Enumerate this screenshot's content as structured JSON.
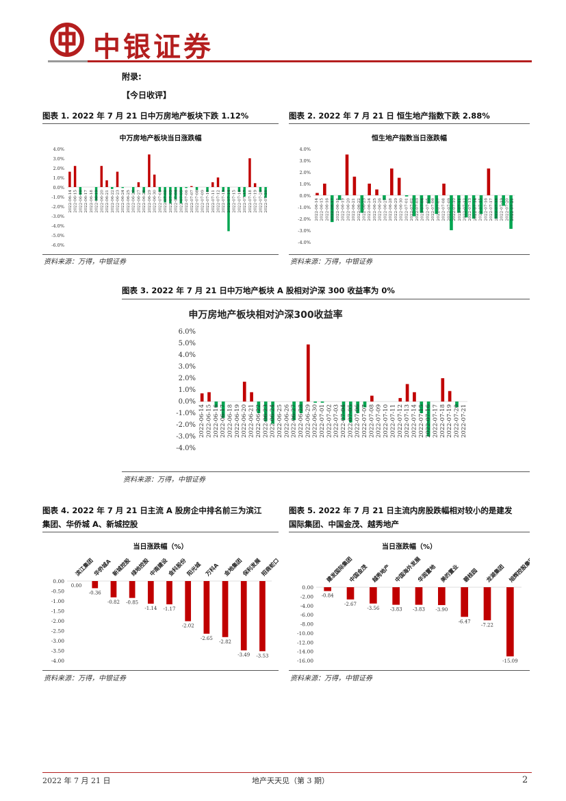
{
  "header": {
    "brand": "中银证券"
  },
  "appendix": {
    "label": "附录:",
    "comment_label": "【今日收评】"
  },
  "figures": {
    "f1": {
      "title": "图表 1. 2022 年 7 月 21 日中万房地产板块下跌 1.12%",
      "source": "资料来源：万得，中银证券"
    },
    "f2": {
      "title": "图表 2. 2022 年 7 月 21 日 恒生地产指数下跌 2.88%",
      "source": "资料来源：万得，中银证券"
    },
    "f3": {
      "title": "图表 3. 2022 年 7 月 21 日中万地产板块 A 股相对沪深 300 收益率为 0%",
      "source": "资料来源：万得，中银证券"
    },
    "f4": {
      "title_line1": "图表 4. 2022 年 7 月 21 日主流 A 股房企中排名前三为滨江",
      "title_line2": "集团、华侨城 A、新城控股",
      "source": "资料来源：万得，中银证券"
    },
    "f5": {
      "title_line1": "图表 5. 2022 年 7 月 21 日主流内房股跌幅相对较小的是建发",
      "title_line2": "国际集团、中国金茂、越秀地产",
      "source": "资料来源：万得，中银证券"
    }
  },
  "footer": {
    "date": "2022 年 7 月 21 日",
    "report": "地产天天见（第 3 期）",
    "page": "2"
  },
  "colors": {
    "brand_red": "#b41e1e",
    "up": "#c00000",
    "down": "#00a651"
  },
  "chart_data": [
    {
      "id": "c1",
      "type": "bar",
      "title": "中万房地产板块当日涨跌幅",
      "categories": [
        "2022-06-14",
        "2022-06-15",
        "2022-06-16",
        "2022-06-17",
        "2022-06-18",
        "2022-06-19",
        "2022-06-20",
        "2022-06-21",
        "2022-06-22",
        "2022-06-23",
        "2022-06-24",
        "2022-06-25",
        "2022-06-26",
        "2022-06-27",
        "2022-06-28",
        "2022-06-29",
        "2022-06-30",
        "2022-07-01",
        "2022-07-02",
        "2022-07-03",
        "2022-07-04",
        "2022-07-05",
        "2022-07-06",
        "2022-07-07",
        "2022-07-08",
        "2022-07-09",
        "2022-07-10",
        "2022-07-11",
        "2022-07-12",
        "2022-07-13",
        "2022-07-14",
        "2022-07-15",
        "2022-07-16",
        "2022-07-17",
        "2022-07-18",
        "2022-07-19",
        "2022-07-20",
        "2022-07-21"
      ],
      "values": [
        1.6,
        2.2,
        -0.8,
        0,
        0,
        -1.4,
        2.2,
        0.7,
        -0.2,
        1.6,
        -0.1,
        0,
        -0.6,
        0.5,
        -0.6,
        3.4,
        1.3,
        -0.5,
        -1.6,
        -1.7,
        -1.3,
        -1.7,
        -0.1,
        0.1,
        -0.3,
        0,
        -0.5,
        0.5,
        1.0,
        -0.5,
        -4.6,
        0.0,
        -0.5,
        -1.0,
        3.0,
        0.4,
        -0.5,
        -1.12
      ],
      "ylim": [
        -6,
        4
      ],
      "yticks": [
        "4.0%",
        "3.0%",
        "2.0%",
        "1.0%",
        "0.0%",
        "-1.0%",
        "-2.0%",
        "-3.0%",
        "-4.0%",
        "-5.0%",
        "-6.0%"
      ],
      "tickvals": [
        4,
        3,
        2,
        1,
        0,
        -1,
        -2,
        -3,
        -4,
        -5,
        -6
      ]
    },
    {
      "id": "c2",
      "type": "bar",
      "title": "恒生地产指数当日涨跌幅",
      "categories": [
        "2022-06-14",
        "2022-06-15",
        "2022-06-16",
        "2022-06-17",
        "2022-06-20",
        "2022-06-21",
        "2022-06-22",
        "2022-06-23",
        "2022-06-24",
        "2022-06-27",
        "2022-06-28",
        "2022-06-29",
        "2022-06-30",
        "2022-07-04",
        "2022-07-05",
        "2022-07-06",
        "2022-07-07",
        "2022-07-08",
        "2022-07-11",
        "2022-07-12",
        "2022-07-13",
        "2022-07-14",
        "2022-07-15",
        "2022-07-18",
        "2022-07-19",
        "2022-07-20",
        "2022-07-21"
      ],
      "values": [
        0.2,
        1.0,
        -2.3,
        -0.4,
        3.5,
        1.6,
        -1.5,
        1.0,
        0.5,
        -0.4,
        2.3,
        1.5,
        -0.1,
        -1.8,
        -1.5,
        -0.7,
        -1.6,
        1.0,
        -3.0,
        -1.5,
        -1.9,
        -2.0,
        -1.6,
        2.3,
        -2.0,
        -0.9,
        -2.88
      ],
      "ylim": [
        -4,
        4
      ],
      "yticks": [
        "4.0%",
        "3.0%",
        "2.0%",
        "1.0%",
        "0.0%",
        "-1.0%",
        "-2.0%",
        "-3.0%",
        "-4.0%"
      ],
      "tickvals": [
        4,
        3,
        2,
        1,
        0,
        -1,
        -2,
        -3,
        -4
      ],
      "xlabels": [
        "2022-06-14",
        "2022-06-15",
        "2022-06-16",
        "2022-06-17",
        "2022-06-18",
        "2022-06-19",
        "2022-06-20",
        "2022-06-21",
        "2022-06-22",
        "2022-06-23",
        "2022-06-24",
        "2022-06-25",
        "2022-06-26",
        "2022-06-27",
        "2022-06-28",
        "2022-06-29",
        "2022-06-30",
        "2022-07-01",
        "2022-07-02",
        "2022-07-03",
        "2022-07-04",
        "2022-07-05",
        "2022-07-06",
        "2022-07-07",
        "2022-07-08",
        "2022-07-09",
        "2022-07-10",
        "2022-07-11",
        "2022-07-12",
        "2022-07-13",
        "2022-07-14",
        "2022-07-15",
        "2022-07-16",
        "2022-07-17",
        "2022-07-18",
        "2022-07-19",
        "2022-07-20",
        "2022-07-21"
      ]
    },
    {
      "id": "c3",
      "type": "bar",
      "title": "申万房地产板块相对沪深300收益率",
      "categories": [
        "2022-06-14",
        "2022-06-15",
        "2022-06-16",
        "2022-06-17",
        "2022-06-18",
        "2022-06-19",
        "2022-06-20",
        "2022-06-21",
        "2022-06-22",
        "2022-06-23",
        "2022-06-24",
        "2022-06-25",
        "2022-06-26",
        "2022-06-27",
        "2022-06-28",
        "2022-06-29",
        "2022-06-30",
        "2022-07-01",
        "2022-07-02",
        "2022-07-03",
        "2022-07-04",
        "2022-07-05",
        "2022-07-06",
        "2022-07-07",
        "2022-07-08",
        "2022-07-09",
        "2022-07-10",
        "2022-07-11",
        "2022-07-12",
        "2022-07-13",
        "2022-07-14",
        "2022-07-15",
        "2022-07-16",
        "2022-07-17",
        "2022-07-18",
        "2022-07-19",
        "2022-07-20",
        "2022-07-21"
      ],
      "values": [
        0.7,
        0.8,
        -0.5,
        -1.4,
        0,
        0,
        1.7,
        0.8,
        -1.0,
        -1.7,
        -1.9,
        0,
        0,
        -1.6,
        -1.0,
        4.9,
        -0.1,
        -0.1,
        0,
        0,
        -1.6,
        -1.8,
        -1.0,
        -0.5,
        0.5,
        0,
        0,
        0,
        0.3,
        1.5,
        0.8,
        -1.0,
        -3.0,
        0,
        2.0,
        0.9,
        -0.5,
        0.0
      ],
      "ylim": [
        -4,
        6
      ],
      "yticks": [
        "6.0%",
        "5.0%",
        "4.0%",
        "3.0%",
        "2.0%",
        "1.0%",
        "0.0%",
        "-1.0%",
        "-2.0%",
        "-3.0%",
        "-4.0%"
      ],
      "tickvals": [
        6,
        5,
        4,
        3,
        2,
        1,
        0,
        -1,
        -2,
        -3,
        -4
      ]
    },
    {
      "id": "c4",
      "type": "bar",
      "title": "当日涨跌幅（%）",
      "categories": [
        "滨江集团",
        "华侨城A",
        "新城控股",
        "绿地控股",
        "中南建设",
        "金科股份",
        "阳光城",
        "万科A",
        "金地集团",
        "保利发展",
        "招商蛇口"
      ],
      "values": [
        0.0,
        -0.36,
        -0.82,
        -0.85,
        -1.14,
        -1.17,
        -2.02,
        -2.65,
        -2.82,
        -3.49,
        -3.53
      ],
      "labels": [
        "0.00",
        "-0.36",
        "-0.82",
        "-0.85",
        "-1.14",
        "-1.17",
        "-2.02",
        "-2.65",
        "-2.82",
        "-3.49",
        "-3.53"
      ],
      "ylim": [
        -4,
        0
      ],
      "yticks": [
        "0.00",
        "-0.50",
        "-1.00",
        "-1.50",
        "-2.00",
        "-2.50",
        "-3.00",
        "-3.50",
        "-4.00"
      ],
      "tickvals": [
        0,
        -0.5,
        -1,
        -1.5,
        -2,
        -2.5,
        -3,
        -3.5,
        -4
      ]
    },
    {
      "id": "c5",
      "type": "bar",
      "title": "当日涨跌幅（%）",
      "categories": [
        "建发国际集团",
        "中国金茂",
        "越秀地产",
        "中国海外发展",
        "华润置地",
        "美的置业",
        "碧桂园",
        "龙湖集团",
        "旭辉控股集团"
      ],
      "values": [
        -0.84,
        -2.67,
        -3.56,
        -3.83,
        -3.83,
        -3.9,
        -6.47,
        -7.22,
        -15.09
      ],
      "labels": [
        "-0.84",
        "-2.67",
        "-3.56",
        "-3.83",
        "-3.83",
        "-3.90",
        "-6.47",
        "-7.22",
        "-15.09"
      ],
      "ylim": [
        -16,
        0
      ],
      "yticks": [
        "0.00",
        "-2.00",
        "-4.00",
        "-6.00",
        "-8.00",
        "-10.00",
        "-12.00",
        "-14.00",
        "-16.00"
      ],
      "tickvals": [
        0,
        -2,
        -4,
        -6,
        -8,
        -10,
        -12,
        -14,
        -16
      ]
    }
  ]
}
